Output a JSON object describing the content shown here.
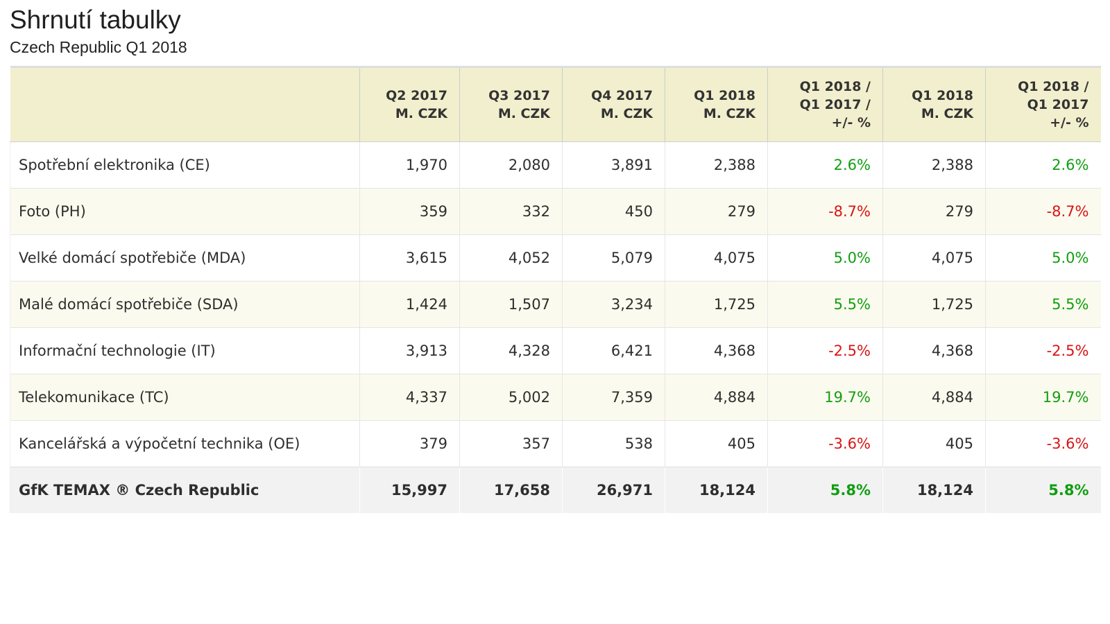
{
  "page": {
    "title": "Shrnutí tabulky",
    "subtitle": "Czech Republic Q1 2018"
  },
  "table": {
    "headers": [
      "",
      "Q2 2017\nM. CZK",
      "Q3 2017\nM. CZK",
      "Q4 2017\nM. CZK",
      "Q1 2018\nM. CZK",
      "Q1 2018 /\nQ1 2017 /\n+/- %",
      "Q1 2018\nM. CZK",
      "Q1 2018 /\nQ1 2017\n+/- %"
    ],
    "rows": [
      {
        "cells": [
          "Spotřební elektronika (CE)",
          "1,970",
          "2,080",
          "3,891",
          "2,388",
          "2.6%",
          "2,388",
          "2.6%"
        ]
      },
      {
        "cells": [
          "Foto (PH)",
          "359",
          "332",
          "450",
          "279",
          "-8.7%",
          "279",
          "-8.7%"
        ]
      },
      {
        "cells": [
          "Velké domácí spotřebiče (MDA)",
          "3,615",
          "4,052",
          "5,079",
          "4,075",
          "5.0%",
          "4,075",
          "5.0%"
        ]
      },
      {
        "cells": [
          "Malé domácí spotřebiče (SDA)",
          "1,424",
          "1,507",
          "3,234",
          "1,725",
          "5.5%",
          "1,725",
          "5.5%"
        ]
      },
      {
        "cells": [
          "Informační technologie (IT)",
          "3,913",
          "4,328",
          "6,421",
          "4,368",
          "-2.5%",
          "4,368",
          "-2.5%"
        ]
      },
      {
        "cells": [
          "Telekomunikace (TC)",
          "4,337",
          "5,002",
          "7,359",
          "4,884",
          "19.7%",
          "4,884",
          "19.7%"
        ]
      },
      {
        "cells": [
          "Kancelářská a výpočetní technika (OE)",
          "379",
          "357",
          "538",
          "405",
          "-3.6%",
          "405",
          "-3.6%"
        ]
      }
    ],
    "total": {
      "cells": [
        "GfK TEMAX ® Czech Republic",
        "15,997",
        "17,658",
        "26,971",
        "18,124",
        "5.8%",
        "18,124",
        "5.8%"
      ]
    },
    "colors": {
      "positive_pct": "#109e10",
      "negative_pct": "#d81414",
      "header_bg": "#f1efcd",
      "stripe_row_bg": "#fbfaee",
      "total_row_bg": "#f2f2f2"
    }
  }
}
